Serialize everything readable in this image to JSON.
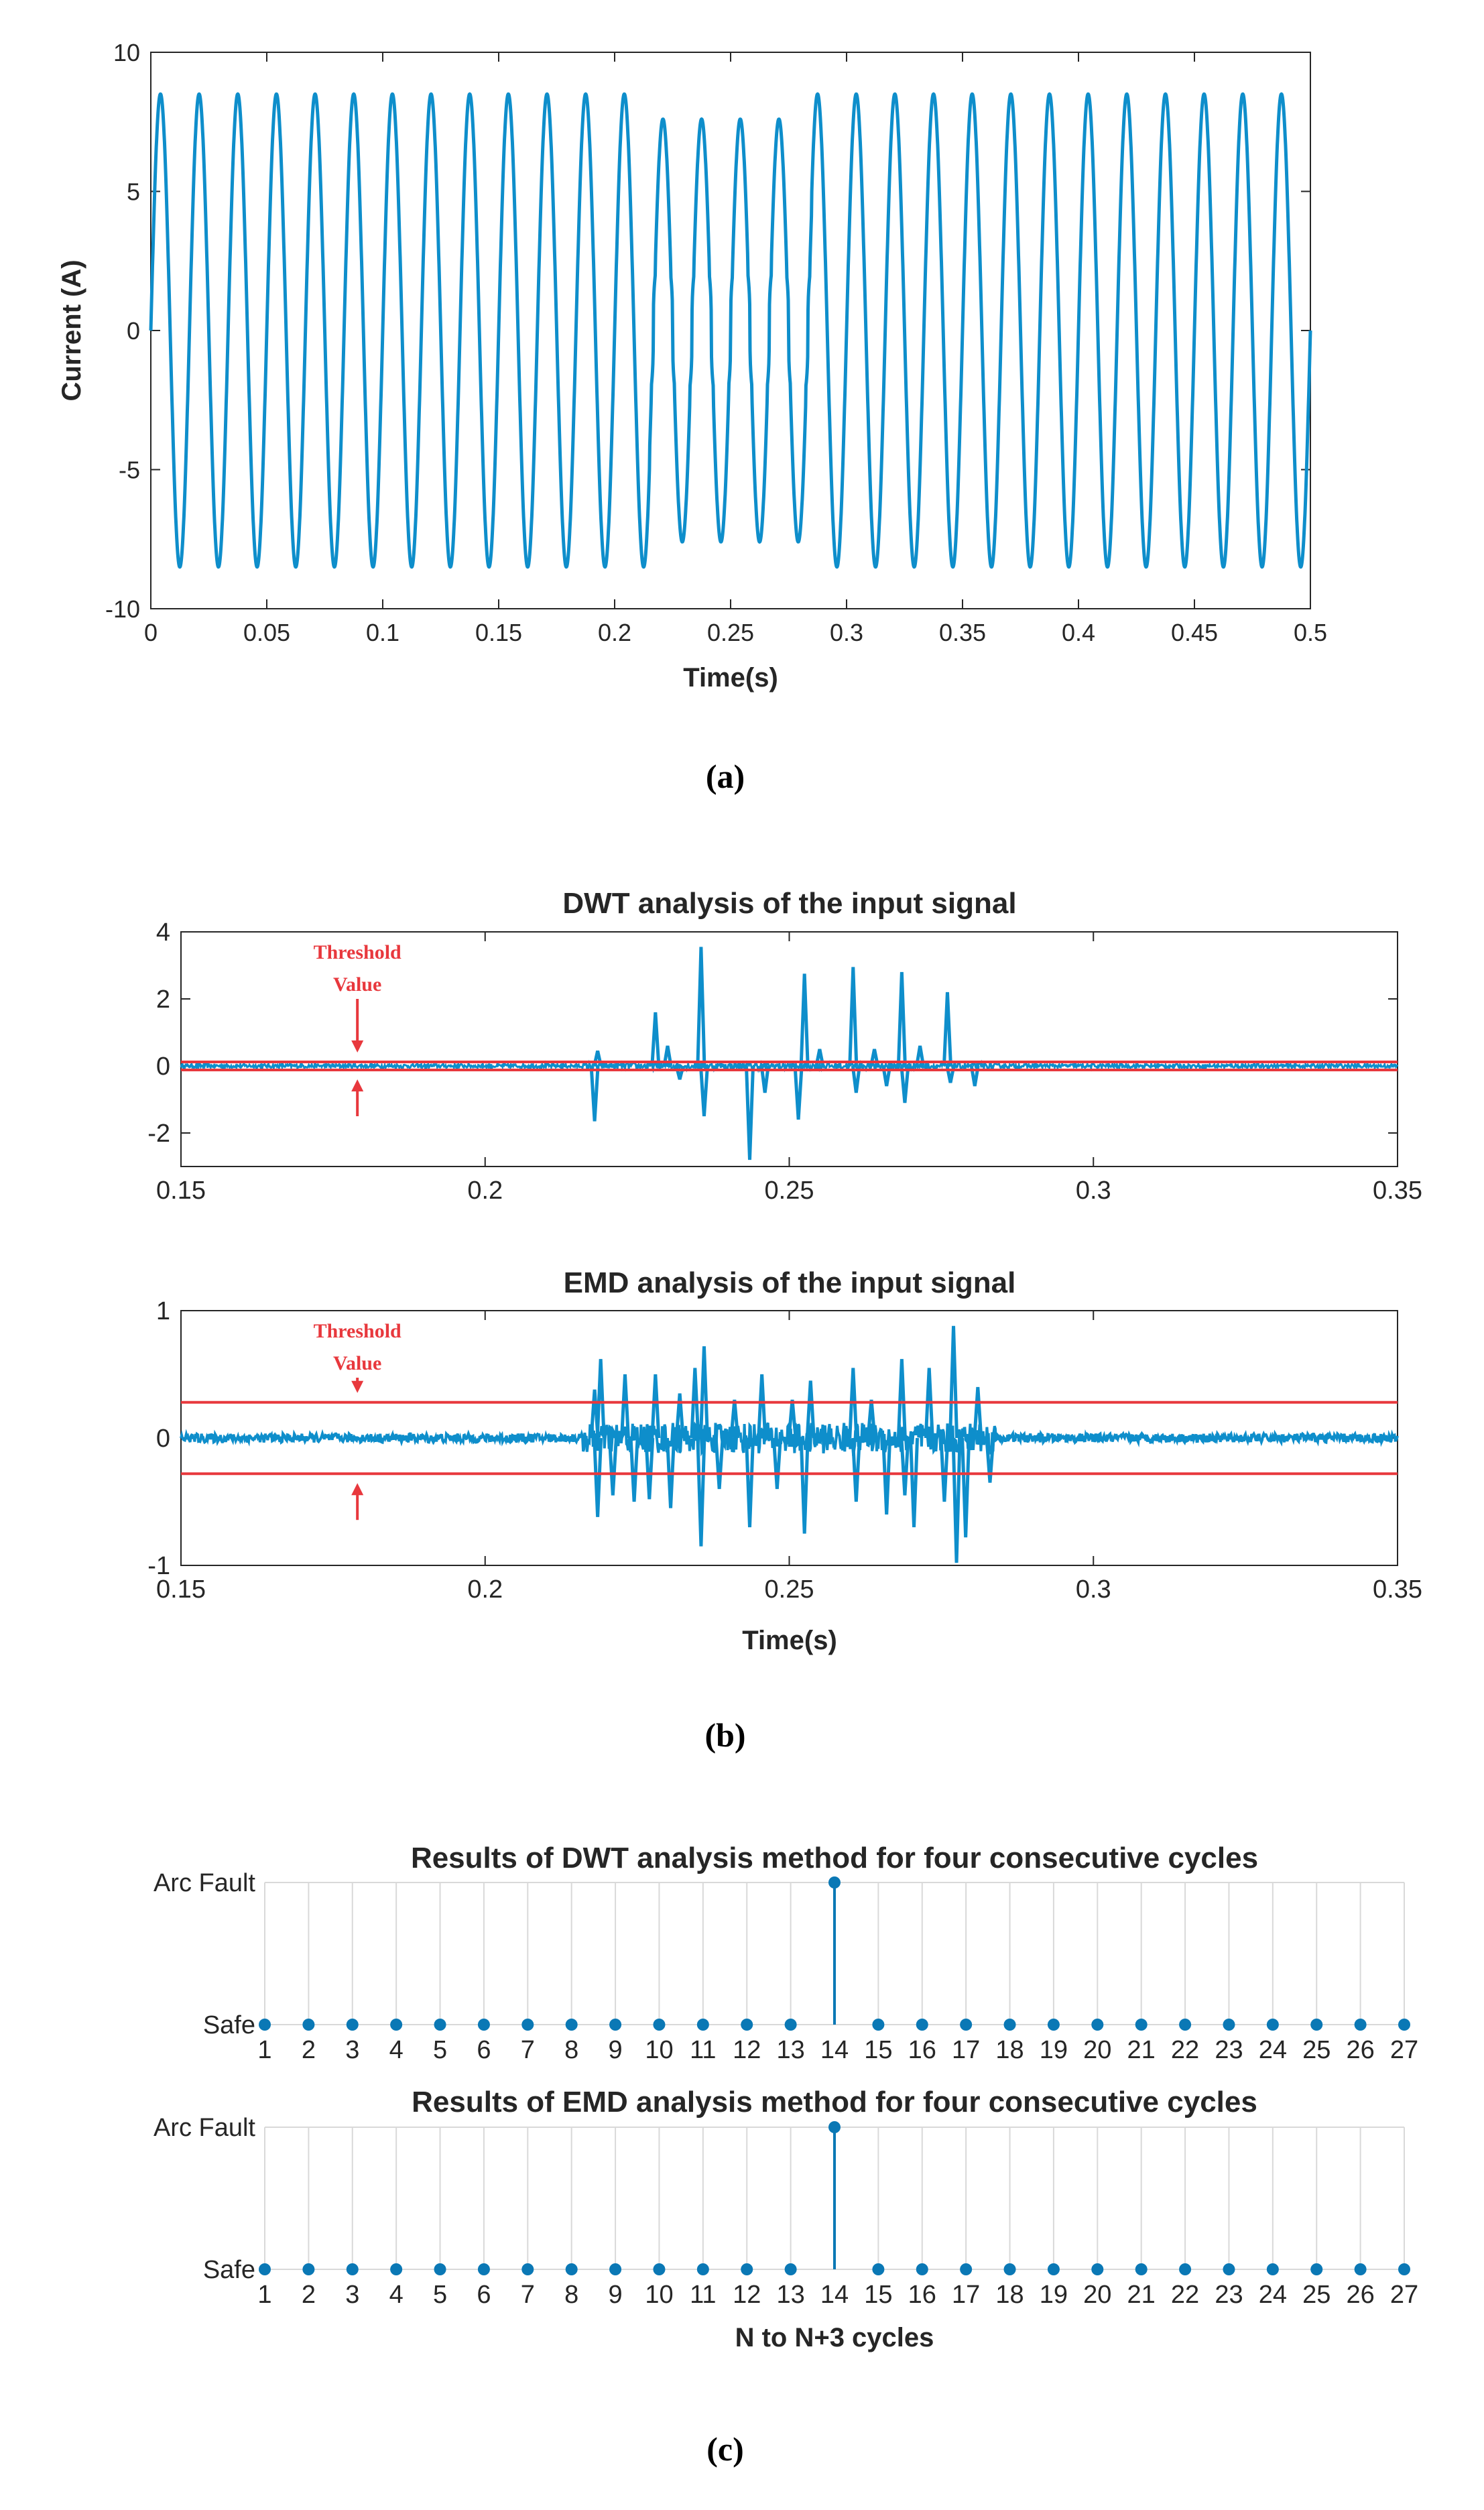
{
  "colors": {
    "signal": "#0e8ecb",
    "threshold": "#e8383d",
    "axis": "#262626",
    "grid": "#d9d9d9",
    "stem": "#0a78b5"
  },
  "captions": {
    "a": "(a)",
    "b": "(b)",
    "c": "(c)"
  },
  "annotations": {
    "threshold_label_line1": "Threshold",
    "threshold_label_line2": "Value",
    "arrow_time": 0.179
  },
  "chart_data": [
    {
      "id": "a",
      "type": "line",
      "title": "",
      "xlabel": "Time(s)",
      "ylabel": "Current (A)",
      "xlim": [
        0,
        0.5
      ],
      "ylim": [
        -10,
        10
      ],
      "xticks": [
        0,
        0.05,
        0.1,
        0.15,
        0.2,
        0.25,
        0.3,
        0.35,
        0.4,
        0.45,
        0.5
      ],
      "xtick_labels": [
        "0",
        "0.05",
        "0.1",
        "0.15",
        "0.2",
        "0.25",
        "0.3",
        "0.35",
        "0.4",
        "0.45",
        "0.5"
      ],
      "yticks": [
        10,
        5,
        0,
        -5,
        -10
      ],
      "ytick_labels": [
        "10",
        "5",
        "0",
        "-5",
        "-10"
      ],
      "signal": {
        "frequency_hz": 60,
        "amplitude": 8.5,
        "fault_window": [
          0.215,
          0.285
        ],
        "fault_positive_peak": 7.6,
        "shoulder_level": 2.0
      }
    },
    {
      "id": "b1",
      "type": "line",
      "title": "DWT analysis of the input signal",
      "xlabel": "",
      "ylabel": "",
      "xlim": [
        0.15,
        0.35
      ],
      "ylim": [
        -3,
        4
      ],
      "xticks": [
        0.15,
        0.2,
        0.25,
        0.3,
        0.35
      ],
      "xtick_labels": [
        "0.15",
        "0.2",
        "0.25",
        "0.3",
        "0.35"
      ],
      "yticks": [
        4,
        2,
        0,
        -2
      ],
      "ytick_labels": [
        "4",
        "2",
        "0",
        "-2"
      ],
      "threshold": [
        0.12,
        -0.12
      ],
      "spikes": [
        {
          "t": 0.218,
          "v": -1.65
        },
        {
          "t": 0.2185,
          "v": 0.45
        },
        {
          "t": 0.228,
          "v": 1.6
        },
        {
          "t": 0.23,
          "v": 0.6
        },
        {
          "t": 0.232,
          "v": -0.4
        },
        {
          "t": 0.2355,
          "v": 3.55
        },
        {
          "t": 0.236,
          "v": -1.5
        },
        {
          "t": 0.2435,
          "v": -2.8
        },
        {
          "t": 0.246,
          "v": -0.8
        },
        {
          "t": 0.2515,
          "v": -1.6
        },
        {
          "t": 0.2525,
          "v": 2.75
        },
        {
          "t": 0.255,
          "v": 0.5
        },
        {
          "t": 0.2605,
          "v": 2.95
        },
        {
          "t": 0.261,
          "v": -0.8
        },
        {
          "t": 0.264,
          "v": 0.5
        },
        {
          "t": 0.266,
          "v": -0.6
        },
        {
          "t": 0.2685,
          "v": 2.8
        },
        {
          "t": 0.269,
          "v": -1.1
        },
        {
          "t": 0.2715,
          "v": 0.6
        },
        {
          "t": 0.276,
          "v": 2.2
        },
        {
          "t": 0.2765,
          "v": -0.5
        },
        {
          "t": 0.2805,
          "v": -0.6
        }
      ]
    },
    {
      "id": "b2",
      "type": "line",
      "title": "EMD analysis of the input signal",
      "xlabel": "Time(s)",
      "ylabel": "",
      "xlim": [
        0.15,
        0.35
      ],
      "ylim": [
        -1,
        1
      ],
      "xticks": [
        0.15,
        0.2,
        0.25,
        0.3,
        0.35
      ],
      "xtick_labels": [
        "0.15",
        "0.2",
        "0.25",
        "0.3",
        "0.35"
      ],
      "yticks": [
        1,
        0,
        -1
      ],
      "ytick_labels": [
        "1",
        "0",
        "-1"
      ],
      "threshold": [
        0.28,
        -0.28
      ],
      "spikes": [
        {
          "t": 0.218,
          "v": 0.38
        },
        {
          "t": 0.2185,
          "v": -0.62
        },
        {
          "t": 0.219,
          "v": 0.62
        },
        {
          "t": 0.221,
          "v": -0.45
        },
        {
          "t": 0.223,
          "v": 0.5
        },
        {
          "t": 0.2245,
          "v": -0.5
        },
        {
          "t": 0.227,
          "v": -0.48
        },
        {
          "t": 0.228,
          "v": 0.5
        },
        {
          "t": 0.2305,
          "v": -0.55
        },
        {
          "t": 0.232,
          "v": 0.35
        },
        {
          "t": 0.2345,
          "v": 0.55
        },
        {
          "t": 0.2355,
          "v": -0.85
        },
        {
          "t": 0.236,
          "v": 0.72
        },
        {
          "t": 0.2385,
          "v": -0.4
        },
        {
          "t": 0.241,
          "v": 0.3
        },
        {
          "t": 0.2435,
          "v": -0.7
        },
        {
          "t": 0.2455,
          "v": 0.5
        },
        {
          "t": 0.248,
          "v": -0.4
        },
        {
          "t": 0.2505,
          "v": 0.3
        },
        {
          "t": 0.2525,
          "v": -0.75
        },
        {
          "t": 0.2535,
          "v": 0.45
        },
        {
          "t": 0.2605,
          "v": 0.55
        },
        {
          "t": 0.261,
          "v": -0.5
        },
        {
          "t": 0.2635,
          "v": 0.3
        },
        {
          "t": 0.266,
          "v": -0.6
        },
        {
          "t": 0.2685,
          "v": 0.62
        },
        {
          "t": 0.269,
          "v": -0.45
        },
        {
          "t": 0.2705,
          "v": -0.7
        },
        {
          "t": 0.273,
          "v": 0.55
        },
        {
          "t": 0.2755,
          "v": -0.5
        },
        {
          "t": 0.277,
          "v": 0.88
        },
        {
          "t": 0.2775,
          "v": -0.98
        },
        {
          "t": 0.279,
          "v": -0.78
        },
        {
          "t": 0.281,
          "v": 0.4
        },
        {
          "t": 0.283,
          "v": -0.35
        }
      ]
    },
    {
      "id": "c1",
      "type": "stem",
      "title": "Results of DWT analysis method for four consecutive cycles",
      "xlabel": "",
      "ylabel": "",
      "categories": [
        "1",
        "2",
        "3",
        "4",
        "5",
        "6",
        "7",
        "8",
        "9",
        "10",
        "11",
        "12",
        "13",
        "14",
        "15",
        "16",
        "17",
        "18",
        "19",
        "20",
        "21",
        "22",
        "23",
        "24",
        "25",
        "26",
        "27"
      ],
      "values": [
        0,
        0,
        0,
        0,
        0,
        0,
        0,
        0,
        0,
        0,
        0,
        0,
        0,
        1,
        0,
        0,
        0,
        0,
        0,
        0,
        0,
        0,
        0,
        0,
        0,
        0,
        0
      ],
      "ytick_labels": [
        "Arc Fault",
        "Safe"
      ],
      "ylim": [
        0,
        1
      ]
    },
    {
      "id": "c2",
      "type": "stem",
      "title": "Results of EMD analysis method for four consecutive cycles",
      "xlabel": "N to N+3 cycles",
      "ylabel": "",
      "categories": [
        "1",
        "2",
        "3",
        "4",
        "5",
        "6",
        "7",
        "8",
        "9",
        "10",
        "11",
        "12",
        "13",
        "14",
        "15",
        "16",
        "17",
        "18",
        "19",
        "20",
        "21",
        "22",
        "23",
        "24",
        "25",
        "26",
        "27"
      ],
      "values": [
        0,
        0,
        0,
        0,
        0,
        0,
        0,
        0,
        0,
        0,
        0,
        0,
        0,
        1,
        0,
        0,
        0,
        0,
        0,
        0,
        0,
        0,
        0,
        0,
        0,
        0,
        0
      ],
      "ytick_labels": [
        "Arc Fault",
        "Safe"
      ],
      "ylim": [
        0,
        1
      ]
    }
  ]
}
